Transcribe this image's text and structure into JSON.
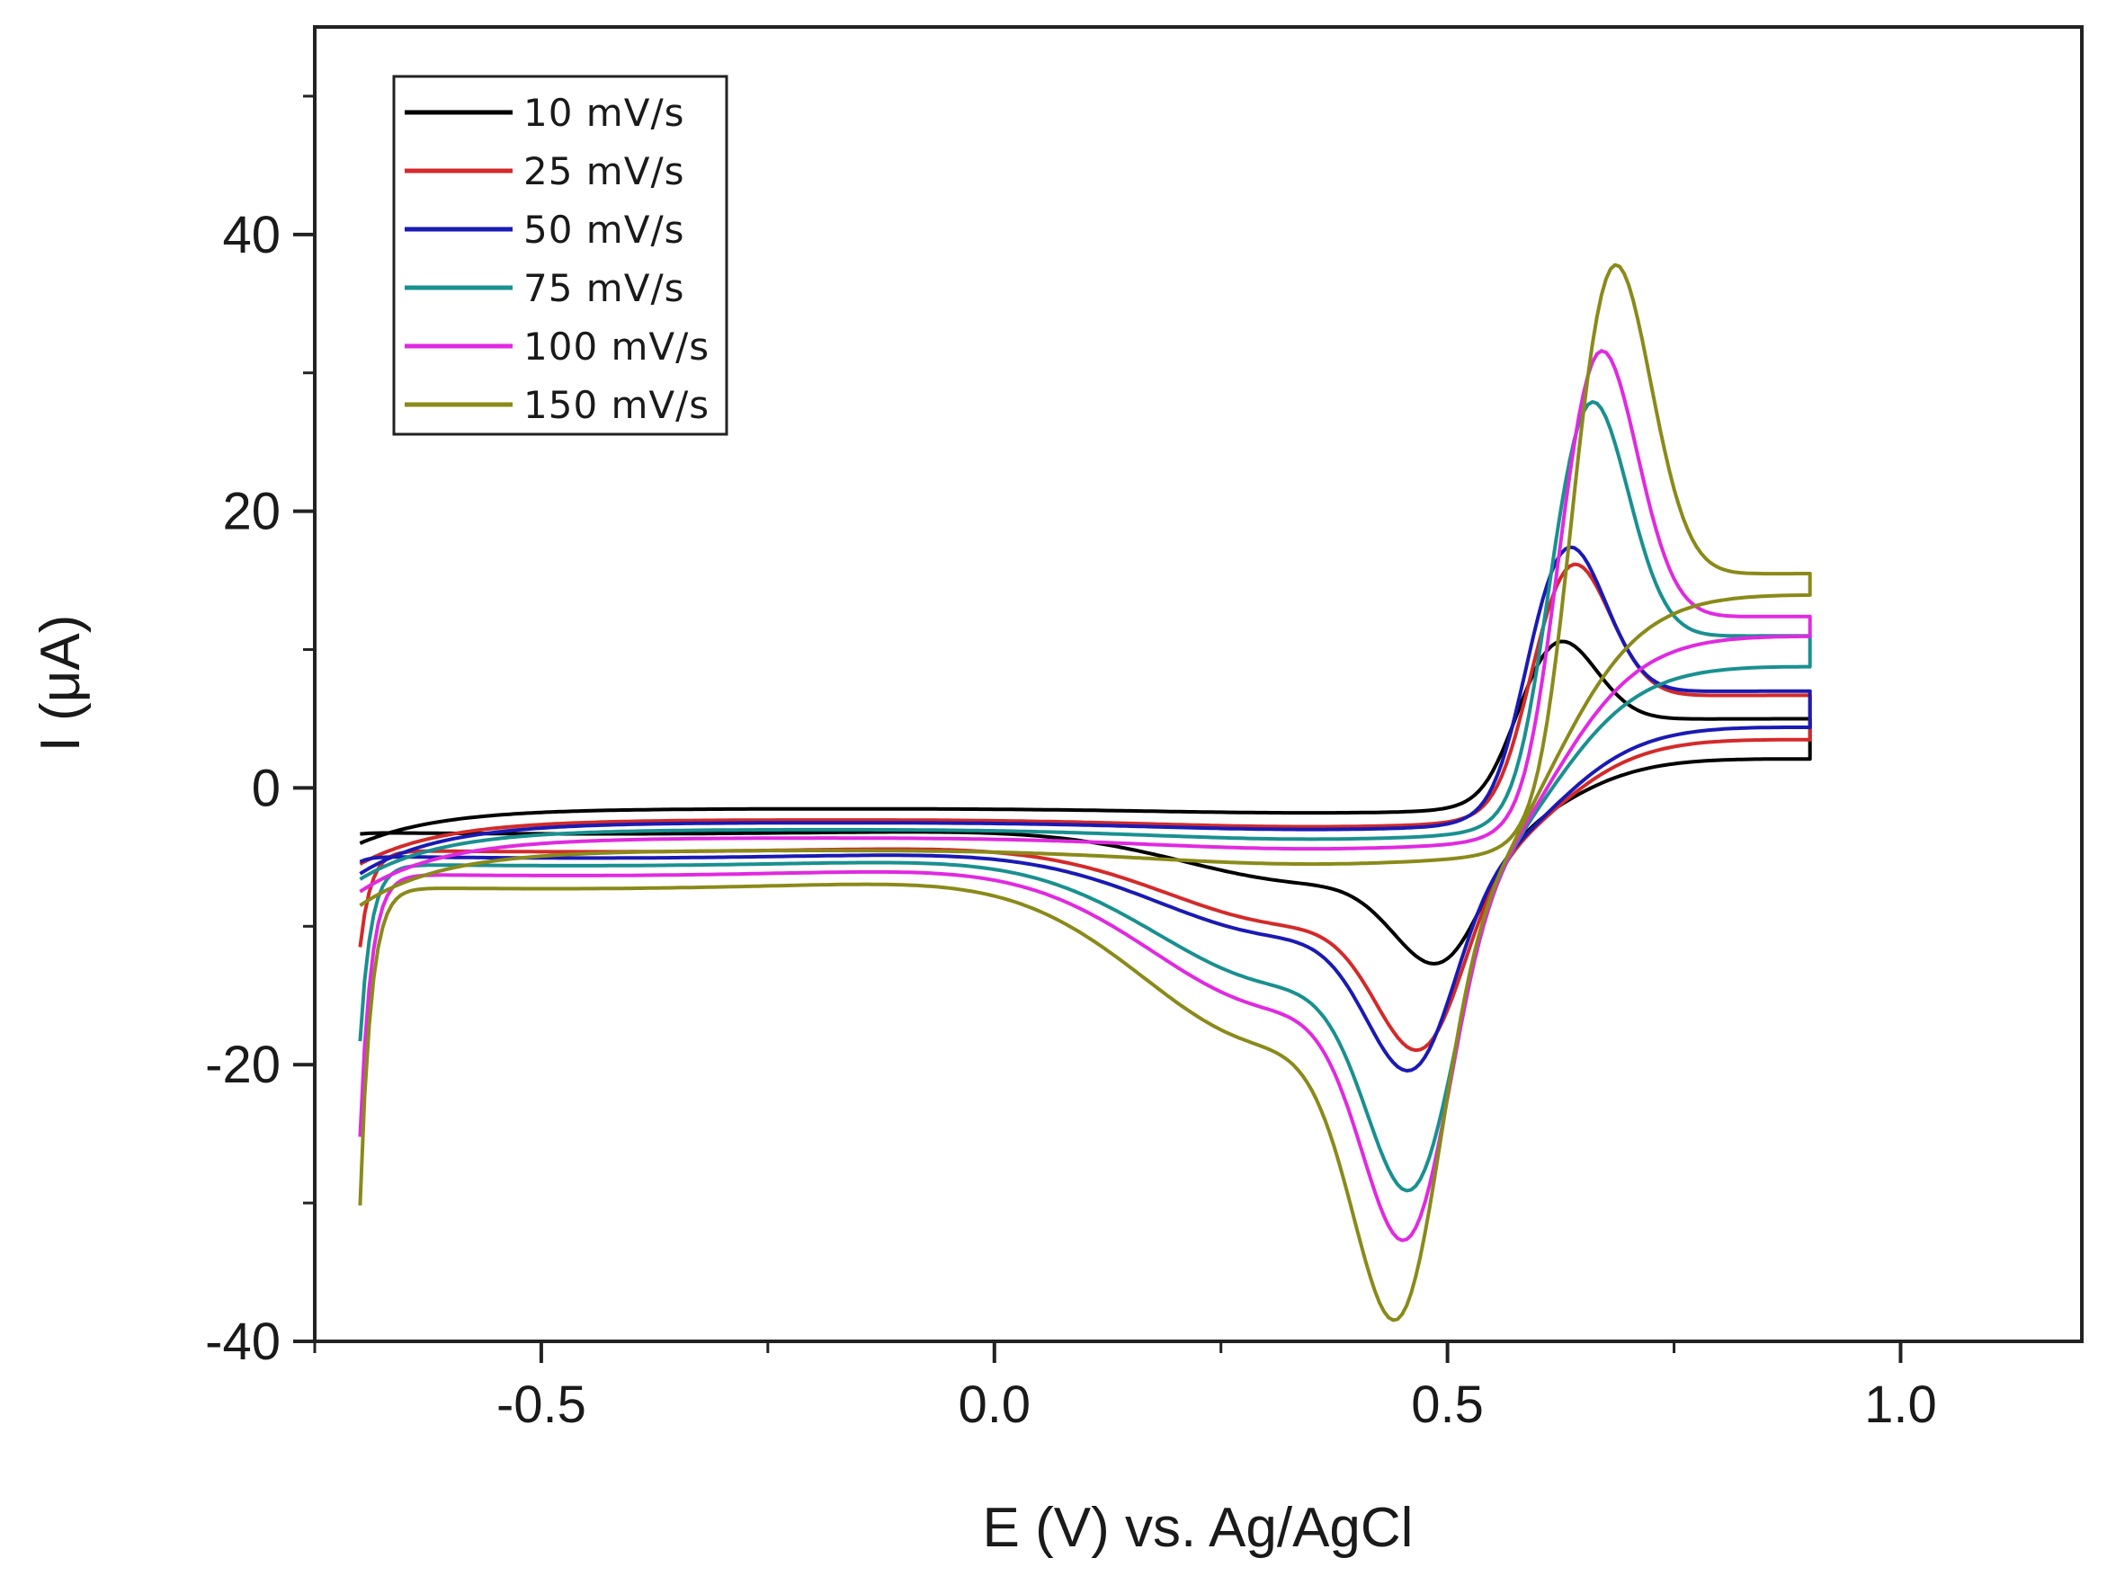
{
  "chart_data": {
    "type": "line",
    "title": "",
    "xlabel": "E (V) vs. Ag/AgCl",
    "ylabel": "I (μA)",
    "xlim": [
      -0.75,
      1.2
    ],
    "ylim": [
      -40,
      55
    ],
    "xticks": [
      -0.5,
      0.0,
      0.5,
      1.0
    ],
    "xtick_labels": [
      "-0.5",
      "0.0",
      "0.5",
      "1.0"
    ],
    "yticks": [
      -40,
      -20,
      0,
      20,
      40
    ],
    "ytick_labels": [
      "-40",
      "-20",
      "0",
      "20",
      "40"
    ],
    "grid": false,
    "legend_position": "top-left",
    "series": [
      {
        "name": "10 mV/s",
        "color": "#000000",
        "params": {
          "ipa": 12.8,
          "epa": 0.62,
          "ipc": -9.5,
          "epc": 0.5,
          "iend": 6.5,
          "iavg": 6.5,
          "bgStart": -4.4,
          "bgMid": -1.5,
          "tailMin": -4.5,
          "fwdStart": -4.0,
          "cap": 0.3
        }
      },
      {
        "name": "25 mV/s",
        "color": "#d42a2a",
        "params": {
          "ipa": 19.5,
          "epa": 0.635,
          "ipc": -14.5,
          "epc": 0.48,
          "iend": 9.5,
          "iavg": 9.0,
          "bgStart": -6.0,
          "bgMid": -2.3,
          "tailMin": -13.0,
          "fwdStart": -5.5,
          "cap": 0.5
        }
      },
      {
        "name": "50 mV/s",
        "color": "#1a1ab4",
        "params": {
          "ipa": 21.0,
          "epa": 0.63,
          "ipc": -15.5,
          "epc": 0.47,
          "iend": 11.0,
          "iavg": 9.5,
          "bgStart": -6.6,
          "bgMid": -2.5,
          "tailMin": -7.0,
          "fwdStart": -6.2,
          "cap": 0.5
        }
      },
      {
        "name": "75 mV/s",
        "color": "#1a9090",
        "params": {
          "ipa": 32.5,
          "epa": 0.655,
          "ipc": -24.0,
          "epc": 0.47,
          "iend": 16.0,
          "iavg": 14.0,
          "bgStart": -7.2,
          "bgMid": -3.0,
          "tailMin": -20.0,
          "fwdStart": -6.6,
          "cap": 0.7
        }
      },
      {
        "name": "100 mV/s",
        "color": "#e02ae0",
        "params": {
          "ipa": 37.0,
          "epa": 0.665,
          "ipc": -27.0,
          "epc": 0.465,
          "iend": 19.0,
          "iavg": 16.0,
          "bgStart": -8.0,
          "bgMid": -3.6,
          "tailMin": -27.0,
          "fwdStart": -7.5,
          "cap": 0.8
        }
      },
      {
        "name": "150 mV/s",
        "color": "#8a8a1a",
        "params": {
          "ipa": 44.5,
          "epa": 0.68,
          "ipc": -32.0,
          "epc": 0.455,
          "iend": 23.0,
          "iavg": 20.0,
          "bgStart": -9.0,
          "bgMid": -4.5,
          "tailMin": -32.0,
          "fwdStart": -8.5,
          "cap": 1.0
        }
      }
    ]
  }
}
